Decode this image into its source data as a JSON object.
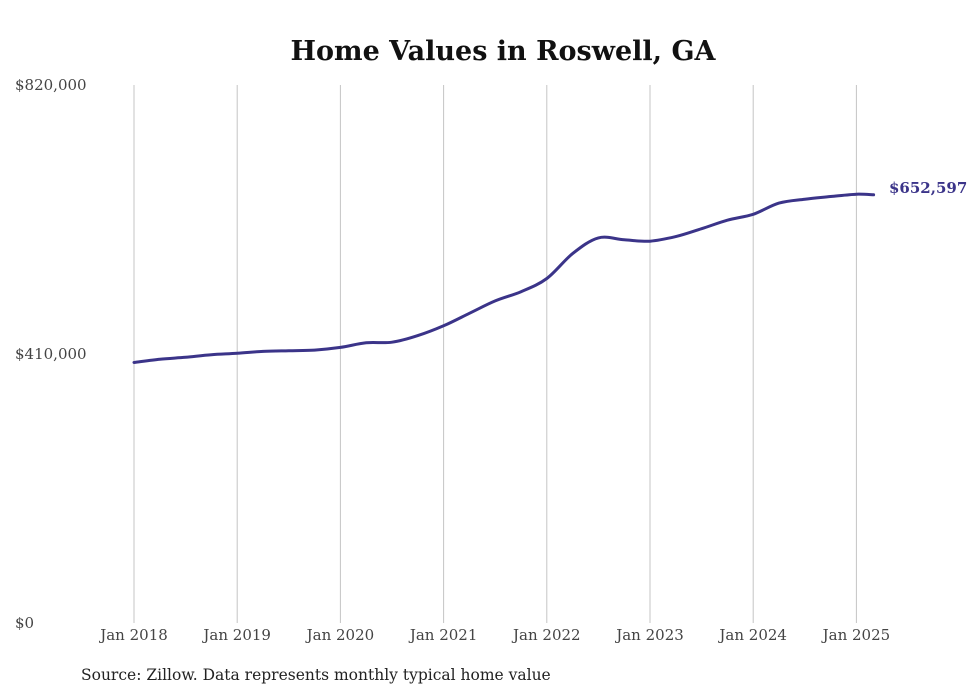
{
  "chart_data": {
    "type": "line",
    "title": "Home Values in Roswell, GA",
    "xlabel": "",
    "ylabel": "",
    "ylim": [
      0,
      820000
    ],
    "y_ticks": [
      {
        "value": 0,
        "label": "$0"
      },
      {
        "value": 410000,
        "label": "$410,000"
      },
      {
        "value": 820000,
        "label": "$820,000"
      }
    ],
    "x_ticks": [
      {
        "date": "2018-01",
        "label": "Jan 2018"
      },
      {
        "date": "2019-01",
        "label": "Jan 2019"
      },
      {
        "date": "2020-01",
        "label": "Jan 2020"
      },
      {
        "date": "2021-01",
        "label": "Jan 2021"
      },
      {
        "date": "2022-01",
        "label": "Jan 2022"
      },
      {
        "date": "2023-01",
        "label": "Jan 2023"
      },
      {
        "date": "2024-01",
        "label": "Jan 2024"
      },
      {
        "date": "2025-01",
        "label": "Jan 2025"
      }
    ],
    "grid": "vertical",
    "legend": "none",
    "series_color": "#3b3489",
    "end_label": "$652,597",
    "series": [
      {
        "x": [
          "2018-01",
          "2018-04",
          "2018-07",
          "2018-10",
          "2019-01",
          "2019-04",
          "2019-07",
          "2019-10",
          "2020-01",
          "2020-04",
          "2020-07",
          "2020-10",
          "2021-01",
          "2021-04",
          "2021-07",
          "2021-10",
          "2022-01",
          "2022-04",
          "2022-07",
          "2022-10",
          "2023-01",
          "2023-04",
          "2023-07",
          "2023-10",
          "2024-01",
          "2024-04",
          "2024-07",
          "2024-10",
          "2025-01",
          "2025-03"
        ],
        "values": [
          397000,
          402000,
          405000,
          409000,
          411000,
          414000,
          415000,
          416000,
          420000,
          427000,
          428000,
          438000,
          453000,
          472000,
          491000,
          505000,
          525000,
          563000,
          587000,
          584000,
          582000,
          589000,
          601000,
          614000,
          623000,
          640000,
          646000,
          650000,
          653500,
          652597
        ]
      }
    ]
  },
  "footer": {
    "source": "Source: Zillow. Data represents monthly typical home value"
  }
}
